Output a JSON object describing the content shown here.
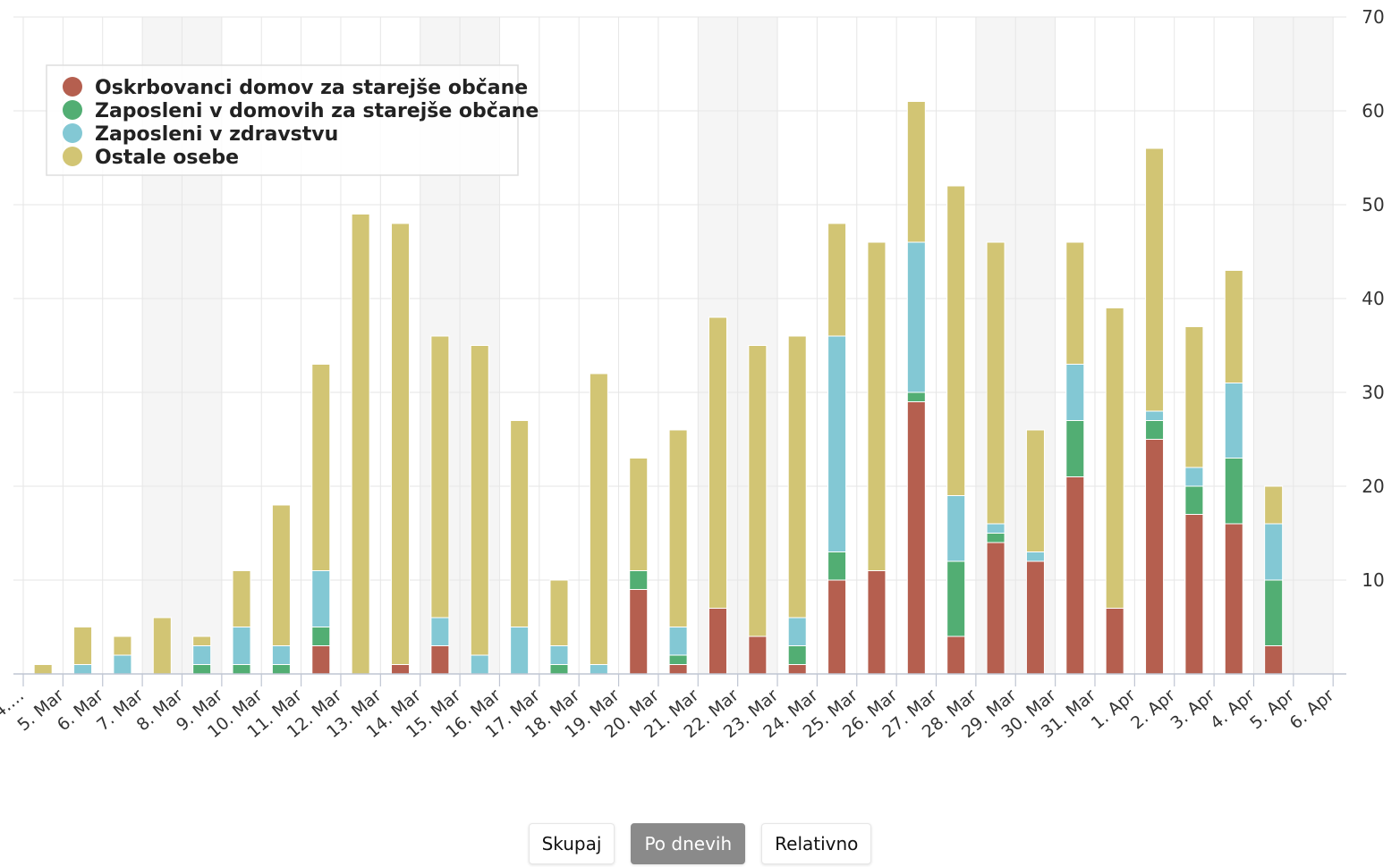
{
  "chart_data": {
    "type": "bar",
    "stacked": true,
    "categories": [
      "4. Mar",
      "5. Mar",
      "6. Mar",
      "7. Mar",
      "8. Mar",
      "9. Mar",
      "10. Mar",
      "11. Mar",
      "12. Mar",
      "13. Mar",
      "14. Mar",
      "15. Mar",
      "16. Mar",
      "17. Mar",
      "18. Mar",
      "19. Mar",
      "20. Mar",
      "21. Mar",
      "22. Mar",
      "23. Mar",
      "24. Mar",
      "25. Mar",
      "26. Mar",
      "27. Mar",
      "28. Mar",
      "29. Mar",
      "30. Mar",
      "31. Mar",
      "1. Apr",
      "2. Apr",
      "3. Apr",
      "4. Apr",
      "5. Apr",
      "6. Apr"
    ],
    "tick_labels": [
      "4.…",
      "5. Mar",
      "6. Mar",
      "7. Mar",
      "8. Mar",
      "9. Mar",
      "10. Mar",
      "11. Mar",
      "12. Mar",
      "13. Mar",
      "14. Mar",
      "15. Mar",
      "16. Mar",
      "17. Mar",
      "18. Mar",
      "19. Mar",
      "20. Mar",
      "21. Mar",
      "22. Mar",
      "23. Mar",
      "24. Mar",
      "25. Mar",
      "26. Mar",
      "27. Mar",
      "28. Mar",
      "29. Mar",
      "30. Mar",
      "31. Mar",
      "1. Apr",
      "2. Apr",
      "3. Apr",
      "4. Apr",
      "5. Apr",
      "6. Apr"
    ],
    "series": [
      {
        "name": "Oskrbovanci domov za starejše občane",
        "color": "#b55f4f",
        "values": [
          0,
          0,
          0,
          0,
          0,
          0,
          0,
          3,
          0,
          1,
          3,
          0,
          0,
          0,
          0,
          9,
          1,
          7,
          4,
          1,
          10,
          11,
          29,
          4,
          14,
          12,
          21,
          7,
          25,
          17,
          16,
          3,
          0,
          0
        ]
      },
      {
        "name": "Zaposleni v domovih za starejše občane",
        "color": "#52ae73",
        "values": [
          0,
          0,
          0,
          0,
          1,
          1,
          1,
          2,
          0,
          0,
          0,
          0,
          0,
          1,
          0,
          2,
          1,
          0,
          0,
          2,
          3,
          0,
          1,
          8,
          1,
          0,
          6,
          0,
          2,
          3,
          7,
          7,
          0,
          0
        ]
      },
      {
        "name": "Zaposleni v zdravstvu",
        "color": "#83c8d4",
        "values": [
          0,
          1,
          2,
          0,
          2,
          4,
          2,
          6,
          0,
          0,
          3,
          2,
          5,
          2,
          1,
          0,
          3,
          0,
          0,
          3,
          23,
          0,
          16,
          7,
          1,
          1,
          6,
          0,
          1,
          2,
          8,
          6,
          0,
          0
        ]
      },
      {
        "name": "Ostale osebe",
        "color": "#d2c574",
        "values": [
          1,
          4,
          2,
          6,
          1,
          6,
          15,
          22,
          49,
          47,
          30,
          33,
          22,
          7,
          31,
          12,
          21,
          31,
          31,
          30,
          12,
          35,
          15,
          33,
          30,
          13,
          13,
          32,
          28,
          15,
          12,
          4,
          0,
          0
        ]
      }
    ],
    "yticks": [
      10,
      20,
      30,
      40,
      50,
      60,
      70
    ],
    "ylim": [
      0,
      70
    ],
    "y_axis_side": "right",
    "grid": true,
    "legend_position": "top-left"
  },
  "controls": {
    "buttons": [
      {
        "label": "Skupaj",
        "active": false
      },
      {
        "label": "Po dnevih",
        "active": true
      },
      {
        "label": "Relativno",
        "active": false
      }
    ]
  }
}
